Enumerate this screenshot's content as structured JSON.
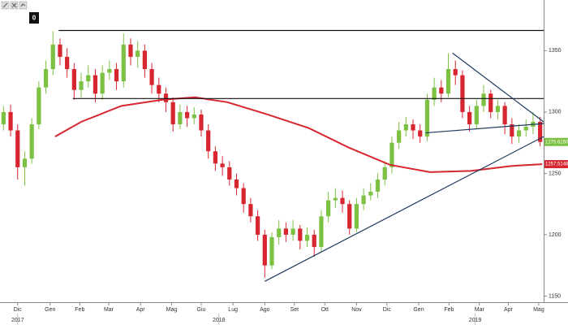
{
  "chart_data": {
    "type": "candlestick",
    "up_color": "#7cc142",
    "down_color": "#d7262f",
    "grid": false,
    "xlim": [
      0,
      77
    ],
    "ylim": [
      1145,
      1388
    ],
    "yticks": [
      1150,
      1200,
      1250,
      1300,
      1350
    ],
    "xticks": [
      {
        "value": 2.5,
        "label": "Dic"
      },
      {
        "value": 7.1,
        "label": "Gen"
      },
      {
        "value": 11.3,
        "label": "Feb"
      },
      {
        "value": 15.4,
        "label": "Mar"
      },
      {
        "value": 19.9,
        "label": "Apr"
      },
      {
        "value": 24.3,
        "label": "Mag"
      },
      {
        "value": 28.5,
        "label": "Giu"
      },
      {
        "value": 33.0,
        "label": "Lug"
      },
      {
        "value": 37.5,
        "label": "Ago"
      },
      {
        "value": 41.7,
        "label": "Set"
      },
      {
        "value": 46.0,
        "label": "Ott"
      },
      {
        "value": 50.5,
        "label": "Nov"
      },
      {
        "value": 54.8,
        "label": "Dic"
      },
      {
        "value": 59.3,
        "label": "Gen"
      },
      {
        "value": 63.6,
        "label": "Feb"
      },
      {
        "value": 67.9,
        "label": "Mar"
      },
      {
        "value": 72.0,
        "label": "Apr"
      },
      {
        "value": 76.3,
        "label": "Mag"
      }
    ],
    "year_ticks": [
      {
        "value": 2.5,
        "label": "2017"
      },
      {
        "value": 31.0,
        "label": "2018"
      },
      {
        "value": 67.3,
        "label": "2019"
      }
    ],
    "open": [
      1290,
      1300,
      1285,
      1255,
      1262,
      1290,
      1320,
      1335,
      1355,
      1345,
      1335,
      1318,
      1325,
      1330,
      1315,
      1332,
      1335,
      1325,
      1355,
      1345,
      1350,
      1335,
      1322,
      1315,
      1308,
      1290,
      1300,
      1295,
      1298,
      1285,
      1268,
      1258,
      1255,
      1245,
      1238,
      1225,
      1215,
      1200,
      1175,
      1198,
      1205,
      1200,
      1205,
      1195,
      1200,
      1190,
      1215,
      1228,
      1230,
      1225,
      1205,
      1225,
      1232,
      1235,
      1245,
      1255,
      1275,
      1285,
      1290,
      1285,
      1280,
      1310,
      1320,
      1315,
      1335,
      1330,
      1300,
      1290,
      1305,
      1315,
      1300,
      1305,
      1290,
      1280,
      1285,
      1288,
      1292
    ],
    "high": [
      1305,
      1306,
      1290,
      1268,
      1295,
      1325,
      1342,
      1366,
      1360,
      1352,
      1340,
      1332,
      1338,
      1335,
      1338,
      1342,
      1340,
      1364,
      1360,
      1358,
      1355,
      1340,
      1328,
      1320,
      1312,
      1306,
      1305,
      1304,
      1302,
      1290,
      1272,
      1264,
      1260,
      1250,
      1242,
      1230,
      1220,
      1204,
      1202,
      1212,
      1210,
      1212,
      1208,
      1206,
      1204,
      1220,
      1235,
      1238,
      1236,
      1228,
      1230,
      1238,
      1242,
      1250,
      1260,
      1280,
      1292,
      1296,
      1294,
      1290,
      1315,
      1328,
      1326,
      1348,
      1342,
      1334,
      1305,
      1310,
      1322,
      1318,
      1310,
      1308,
      1295,
      1290,
      1294,
      1300,
      1296
    ],
    "low": [
      1285,
      1280,
      1245,
      1240,
      1258,
      1286,
      1315,
      1330,
      1338,
      1328,
      1310,
      1312,
      1320,
      1308,
      1310,
      1326,
      1318,
      1320,
      1338,
      1336,
      1328,
      1315,
      1308,
      1300,
      1284,
      1286,
      1288,
      1290,
      1280,
      1262,
      1252,
      1248,
      1240,
      1232,
      1218,
      1210,
      1195,
      1165,
      1172,
      1192,
      1194,
      1195,
      1188,
      1190,
      1182,
      1186,
      1210,
      1222,
      1218,
      1200,
      1202,
      1220,
      1228,
      1230,
      1240,
      1250,
      1270,
      1280,
      1278,
      1275,
      1276,
      1305,
      1308,
      1312,
      1322,
      1295,
      1284,
      1286,
      1300,
      1295,
      1294,
      1282,
      1274,
      1275,
      1280,
      1282,
      1272
    ],
    "close": [
      1300,
      1285,
      1255,
      1262,
      1290,
      1320,
      1335,
      1355,
      1345,
      1335,
      1318,
      1325,
      1330,
      1315,
      1332,
      1335,
      1325,
      1355,
      1345,
      1350,
      1335,
      1322,
      1315,
      1308,
      1290,
      1300,
      1295,
      1298,
      1285,
      1268,
      1258,
      1255,
      1245,
      1238,
      1225,
      1215,
      1200,
      1175,
      1198,
      1205,
      1200,
      1205,
      1195,
      1200,
      1190,
      1215,
      1228,
      1230,
      1225,
      1205,
      1225,
      1232,
      1235,
      1245,
      1255,
      1275,
      1285,
      1290,
      1285,
      1280,
      1310,
      1320,
      1315,
      1335,
      1330,
      1300,
      1290,
      1305,
      1315,
      1300,
      1305,
      1290,
      1280,
      1285,
      1288,
      1292,
      1275.615
    ],
    "moving_average": {
      "color": "#d7262f",
      "x": [
        7.8,
        11.5,
        17.2,
        23.0,
        27.6,
        32.2,
        37.9,
        43.7,
        49.4,
        55.2,
        60.9,
        66.7,
        72.4,
        76.8
      ],
      "values": [
        1280,
        1292,
        1305,
        1310,
        1312,
        1308,
        1298,
        1287,
        1271,
        1257,
        1251,
        1252,
        1256,
        1257.5148
      ]
    },
    "trendlines": [
      {
        "color": "#111111",
        "x": [
          8.3,
          77
        ],
        "y": [
          1366.5,
          1366.5
        ]
      },
      {
        "color": "#111111",
        "x": [
          10.3,
          77
        ],
        "y": [
          1311,
          1311
        ]
      },
      {
        "color": "#1f3a5f",
        "x": [
          37.5,
          77
        ],
        "y": [
          1162,
          1280
        ]
      },
      {
        "color": "#1f3a5f",
        "x": [
          64.1,
          77
        ],
        "y": [
          1348,
          1292
        ]
      },
      {
        "color": "#1f3a5f",
        "x": [
          60.3,
          77
        ],
        "y": [
          1283,
          1290.6
        ]
      }
    ],
    "price_labels": [
      {
        "value": 1275.615,
        "label": "1275.6150",
        "color": "#7cc142"
      },
      {
        "value": 1257.5148,
        "label": "1257.5148",
        "color": "#d7262f"
      }
    ],
    "toolbar_badge": "0"
  }
}
